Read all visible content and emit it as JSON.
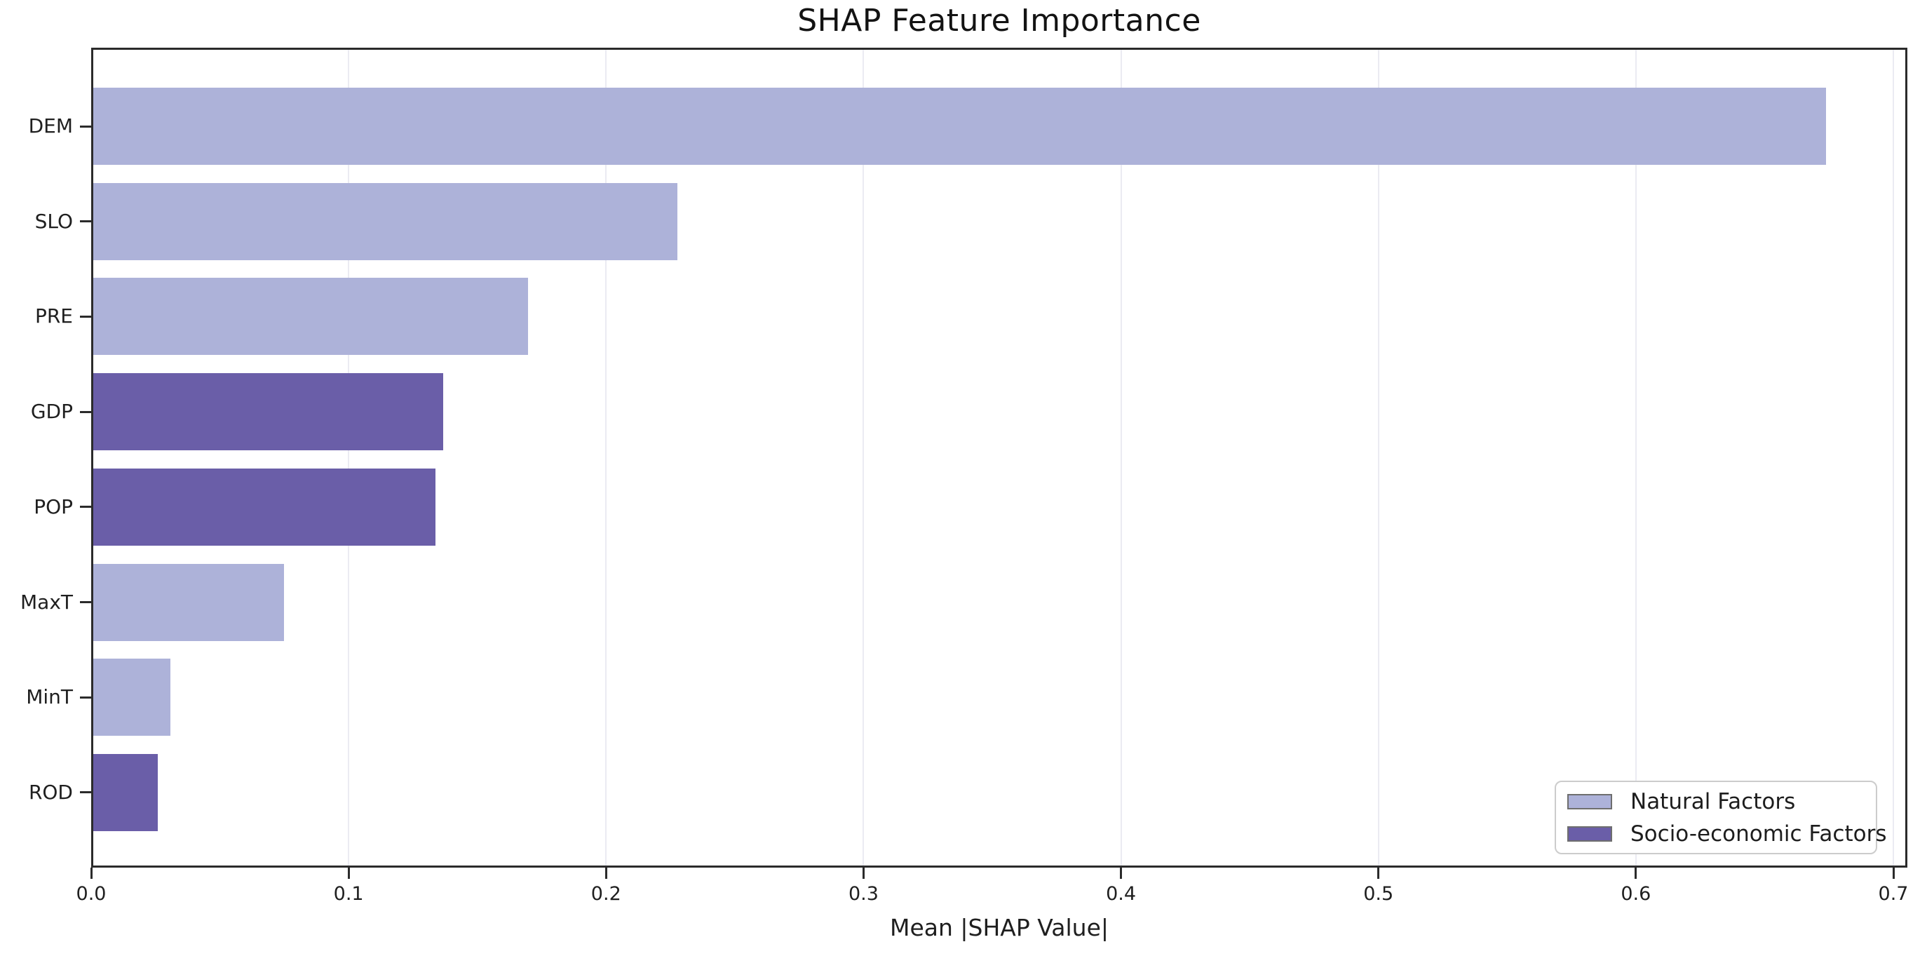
{
  "chart_data": {
    "type": "bar",
    "orientation": "horizontal",
    "title": "SHAP Feature Importance",
    "xlabel": "Mean |SHAP Value|",
    "ylabel": "",
    "categories": [
      "DEM",
      "SLO",
      "PRE",
      "GDP",
      "POP",
      "MaxT",
      "MinT",
      "ROD"
    ],
    "values": [
      0.673,
      0.227,
      0.169,
      0.136,
      0.133,
      0.074,
      0.03,
      0.025
    ],
    "groups": [
      "natural",
      "natural",
      "natural",
      "socio-economic",
      "socio-economic",
      "natural",
      "natural",
      "socio-economic"
    ],
    "group_colors": {
      "natural": "#adb2d9",
      "socio-economic": "#6a5ea8"
    },
    "xlim": [
      0.0,
      0.7
    ],
    "xticks": {
      "values": [
        0.0,
        0.1,
        0.2,
        0.3,
        0.4,
        0.5,
        0.6,
        0.7
      ],
      "labels": [
        "0.0",
        "0.1",
        "0.2",
        "0.3",
        "0.4",
        "0.5",
        "0.6",
        "0.7"
      ]
    },
    "grid": {
      "vertical": true,
      "horizontal": false,
      "color": "#ebebf2"
    },
    "legend": {
      "position": "lower right",
      "entries": [
        {
          "label": "Natural Factors",
          "group": "natural",
          "color": "#adb2d9"
        },
        {
          "label": "Socio-economic Factors",
          "group": "socio-economic",
          "color": "#6a5ea8"
        }
      ]
    }
  }
}
